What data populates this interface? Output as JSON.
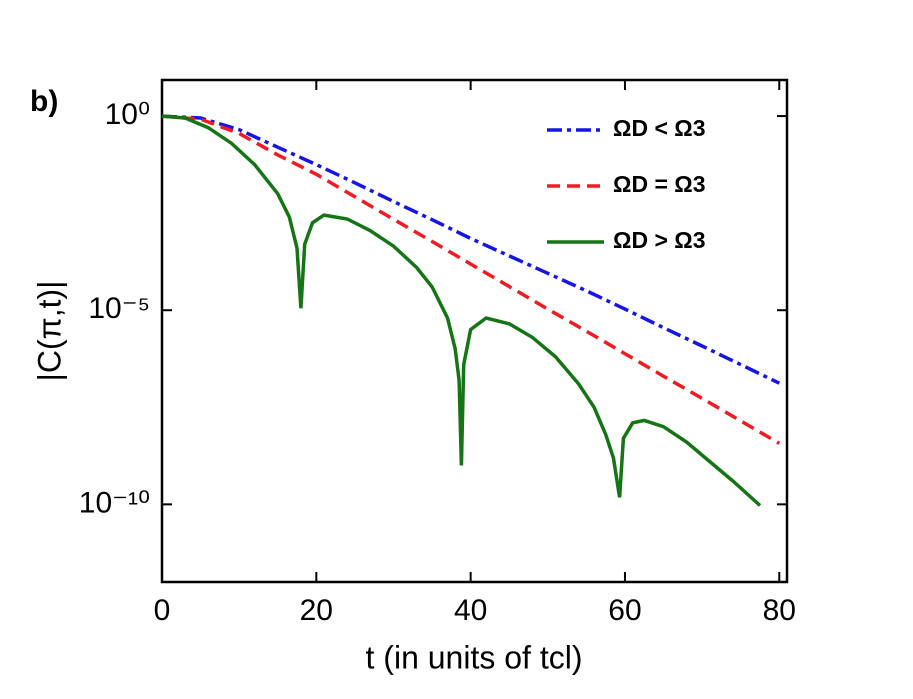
{
  "chart_data": {
    "type": "line",
    "panel_label": "b)",
    "xlabel": "t (in units of tcl)",
    "ylabel": "|C(π,t)|",
    "xlim": [
      0,
      81
    ],
    "xticks": [
      0,
      20,
      40,
      60,
      80
    ],
    "ylim": [
      1e-12,
      8.5
    ],
    "log_y": true,
    "yticks": [
      {
        "value": 1,
        "label": "10⁰"
      },
      {
        "value": 1e-05,
        "label": "10⁻⁵"
      },
      {
        "value": 1e-10,
        "label": "10⁻¹⁰"
      }
    ],
    "legend": "upper right",
    "series": [
      {
        "name": "ΩD < Ω3",
        "color": "#1515e6",
        "linestyle": "dashdot",
        "x": [
          0,
          5,
          10,
          15,
          20,
          25,
          30,
          35,
          40,
          45,
          50,
          55,
          60,
          65,
          70,
          75,
          80
        ],
        "values": [
          1,
          0.891,
          0.447,
          0.158,
          0.0562,
          0.0191,
          0.00631,
          0.00214,
          0.000708,
          0.000251,
          8.91e-05,
          3.16e-05,
          1.07e-05,
          3.55e-06,
          1.2e-06,
          3.98e-07,
          1.32e-07
        ]
      },
      {
        "name": "ΩD = Ω3",
        "color": "#f01c24",
        "linestyle": "dashed",
        "x": [
          0,
          5,
          10,
          15,
          20,
          25,
          30,
          35,
          40,
          45,
          50,
          55,
          60,
          65,
          70,
          75,
          80
        ],
        "values": [
          1,
          0.832,
          0.355,
          0.1,
          0.0316,
          0.00832,
          0.00219,
          0.000589,
          0.000155,
          4.07e-05,
          1.07e-05,
          2.88e-06,
          7.59e-07,
          2e-07,
          5.37e-08,
          1.41e-08,
          3.72e-09
        ]
      },
      {
        "name": "ΩD > Ω3",
        "color": "#157515",
        "linestyle": "solid",
        "x": [
          0,
          3,
          6,
          9,
          12,
          15,
          16.5,
          17.5,
          18,
          18.5,
          19.5,
          21,
          24,
          27,
          30,
          33,
          35,
          37,
          38,
          38.5,
          38.8,
          39.1,
          40,
          42,
          45,
          48,
          51,
          54,
          56,
          57.5,
          58.5,
          59.3,
          59.8,
          61,
          62.5,
          65,
          68,
          71,
          74,
          77.5
        ],
        "values": [
          1,
          0.891,
          0.501,
          0.2,
          0.0562,
          0.01,
          0.00251,
          0.000398,
          1.12e-05,
          0.000501,
          0.00178,
          0.00282,
          0.00224,
          0.00112,
          0.000447,
          0.000126,
          3.98e-05,
          6.31e-06,
          1e-06,
          1.58e-07,
          1e-09,
          3.98e-07,
          3.16e-06,
          6.31e-06,
          4.47e-06,
          2e-06,
          6.31e-07,
          1.26e-07,
          3.16e-08,
          6.31e-09,
          1.58e-09,
          1.51e-10,
          5.01e-09,
          1.26e-08,
          1.45e-08,
          1e-08,
          3.98e-09,
          1.26e-09,
          3.98e-10,
          9.33e-11
        ]
      }
    ]
  }
}
